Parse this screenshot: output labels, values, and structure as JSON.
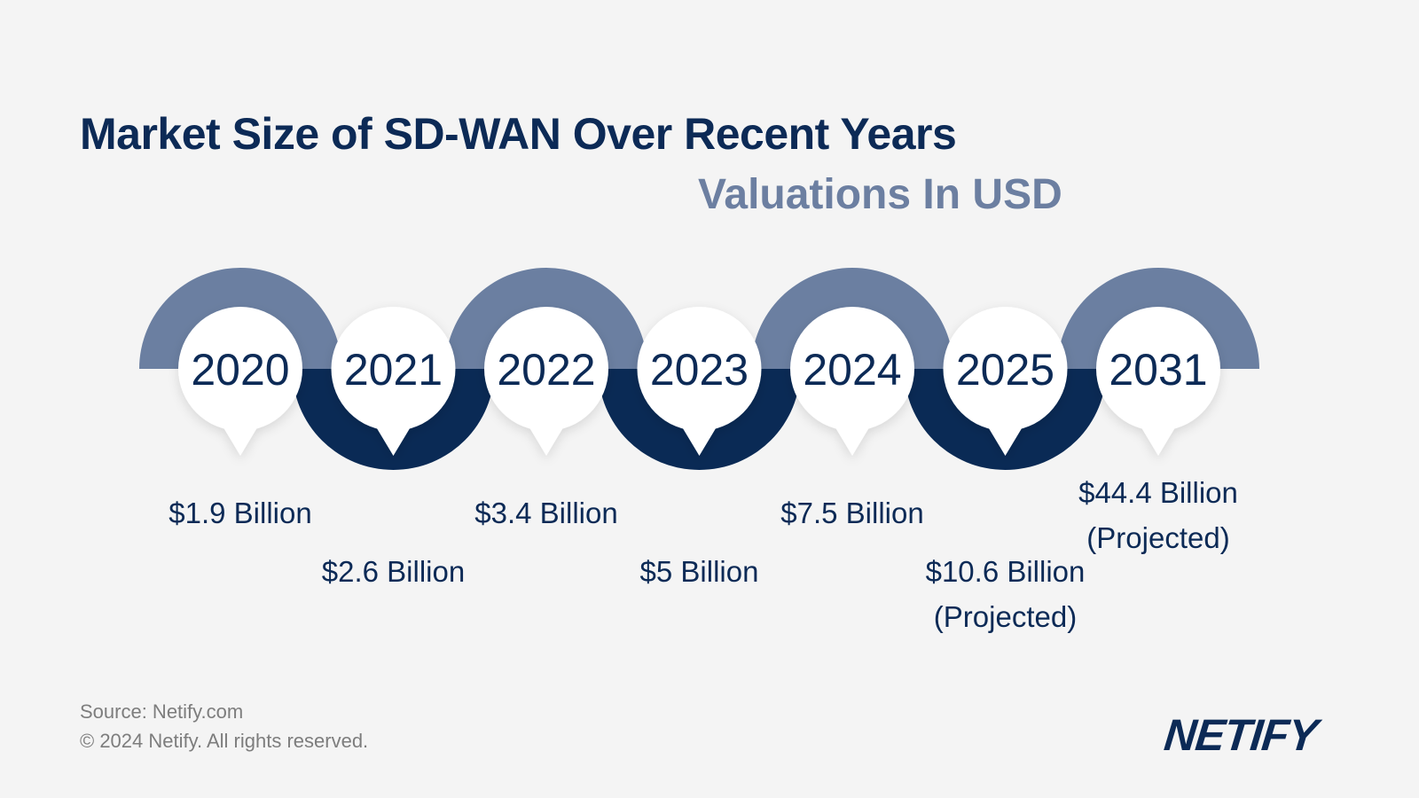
{
  "title": "Market Size of SD-WAN Over Recent Years",
  "subtitle": "Valuations In USD",
  "chart_data": {
    "type": "timeline",
    "categories": [
      "2020",
      "2021",
      "2022",
      "2023",
      "2024",
      "2025",
      "2031"
    ],
    "values": [
      1.9,
      2.6,
      3.4,
      5,
      7.5,
      10.6,
      44.4
    ],
    "labels": [
      {
        "line1": "$1.9 Billion",
        "line2": ""
      },
      {
        "line1": "$2.6 Billion",
        "line2": ""
      },
      {
        "line1": "$3.4 Billion",
        "line2": ""
      },
      {
        "line1": "$5 Billion",
        "line2": ""
      },
      {
        "line1": "$7.5 Billion",
        "line2": ""
      },
      {
        "line1": "$10.6 Billion",
        "line2": "(Projected)"
      },
      {
        "line1": "$44.4 Billion",
        "line2": "(Projected)"
      }
    ],
    "colors": {
      "upper_arc": "#6b7fa1",
      "lower_arc": "#0a2a55",
      "circle": "#ffffff",
      "text": "#0c2a56"
    }
  },
  "footer": {
    "source": "Source: Netify.com",
    "copyright": "© 2024 Netify. All rights reserved."
  },
  "logo": "NETIFY"
}
